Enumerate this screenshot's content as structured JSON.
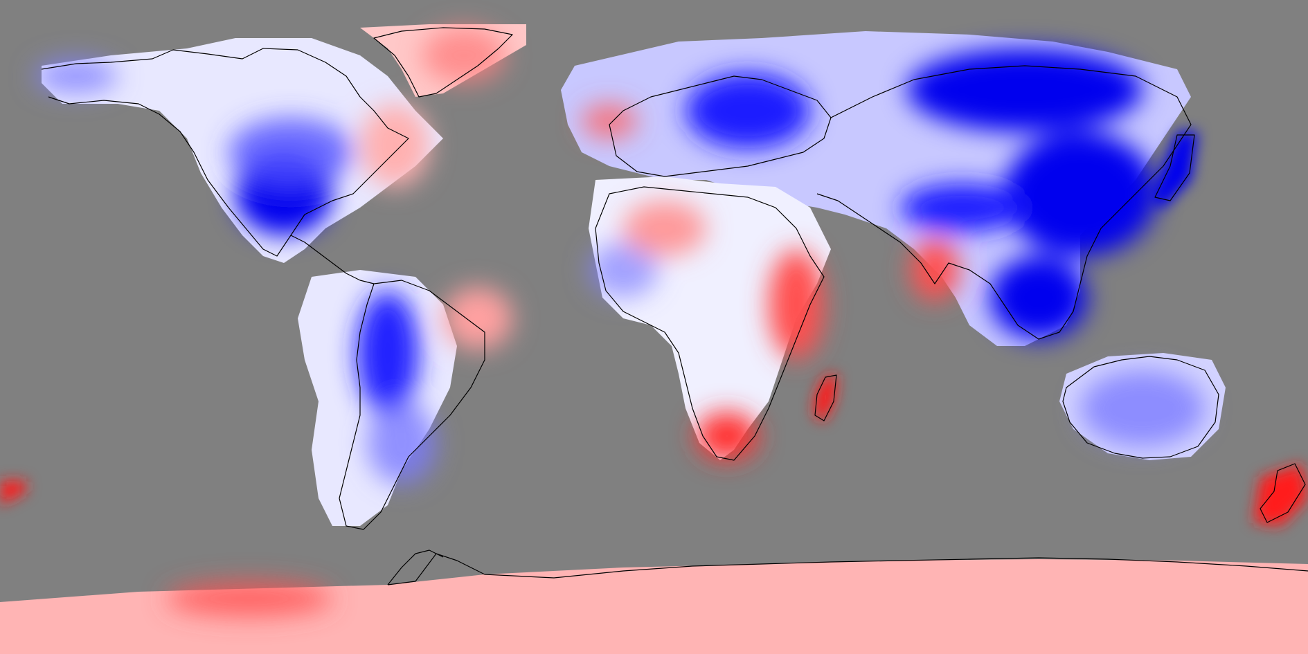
{
  "map": {
    "projection": "equirectangular",
    "background_color": "#808080",
    "coastline_color": "#000000",
    "colors": {
      "strong_warm": "#ff1a1a",
      "warm": "#ff8080",
      "light_warm": "#ffc8c8",
      "neutral": "#f4f4ff",
      "light_cool": "#c8c8ff",
      "cool": "#7a7aff",
      "strong_cool": "#0000ee"
    }
  }
}
